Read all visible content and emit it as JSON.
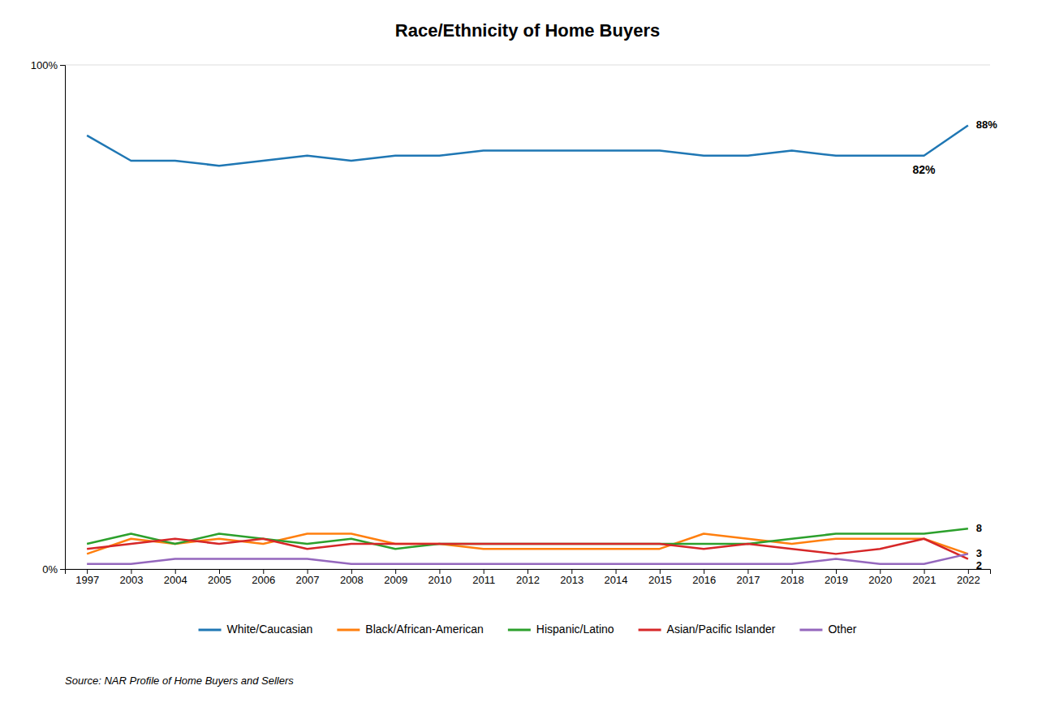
{
  "chart_data": {
    "type": "line",
    "title": "Race/Ethnicity of Home Buyers",
    "categories": [
      1997,
      2003,
      2004,
      2005,
      2006,
      2007,
      2008,
      2009,
      2010,
      2011,
      2012,
      2013,
      2014,
      2015,
      2016,
      2017,
      2018,
      2019,
      2020,
      2021,
      2022
    ],
    "series": [
      {
        "name": "White/Caucasian",
        "values": [
          86,
          81,
          81,
          80,
          81,
          82,
          81,
          82,
          82,
          83,
          83,
          83,
          83,
          83,
          82,
          82,
          83,
          82,
          82,
          82,
          88
        ]
      },
      {
        "name": "Black/African-American",
        "values": [
          3,
          6,
          5,
          6,
          5,
          7,
          7,
          5,
          5,
          4,
          4,
          4,
          4,
          4,
          7,
          6,
          5,
          6,
          6,
          6,
          3
        ]
      },
      {
        "name": "Hispanic/Latino",
        "values": [
          5,
          7,
          5,
          7,
          6,
          5,
          6,
          4,
          5,
          5,
          5,
          5,
          5,
          5,
          5,
          5,
          6,
          7,
          7,
          7,
          8
        ]
      },
      {
        "name": "Asian/Pacific Islander",
        "values": [
          4,
          5,
          6,
          5,
          6,
          4,
          5,
          5,
          5,
          5,
          5,
          5,
          5,
          5,
          4,
          5,
          4,
          3,
          4,
          6,
          2
        ]
      },
      {
        "name": "Other",
        "values": [
          1,
          1,
          2,
          2,
          2,
          2,
          1,
          1,
          1,
          1,
          1,
          1,
          1,
          1,
          1,
          1,
          1,
          2,
          1,
          1,
          3
        ]
      }
    ],
    "ylim": [
      0,
      100
    ],
    "yticks": [
      {
        "value": 0,
        "label": "0%"
      },
      {
        "value": 100,
        "label": "100%"
      }
    ],
    "grid": true,
    "legend": "bottom",
    "annotations": [
      {
        "text": "82%",
        "x": 2021,
        "y": 82
      },
      {
        "text": "88%",
        "x": 2022,
        "y": 88
      },
      {
        "text": "8",
        "x": 2022,
        "y": 8
      },
      {
        "text": "3",
        "x": 2022,
        "y": 3
      },
      {
        "text": "2",
        "x": 2022,
        "y": 2
      }
    ],
    "source": "Source: NAR Profile of Home Buyers and Sellers"
  }
}
